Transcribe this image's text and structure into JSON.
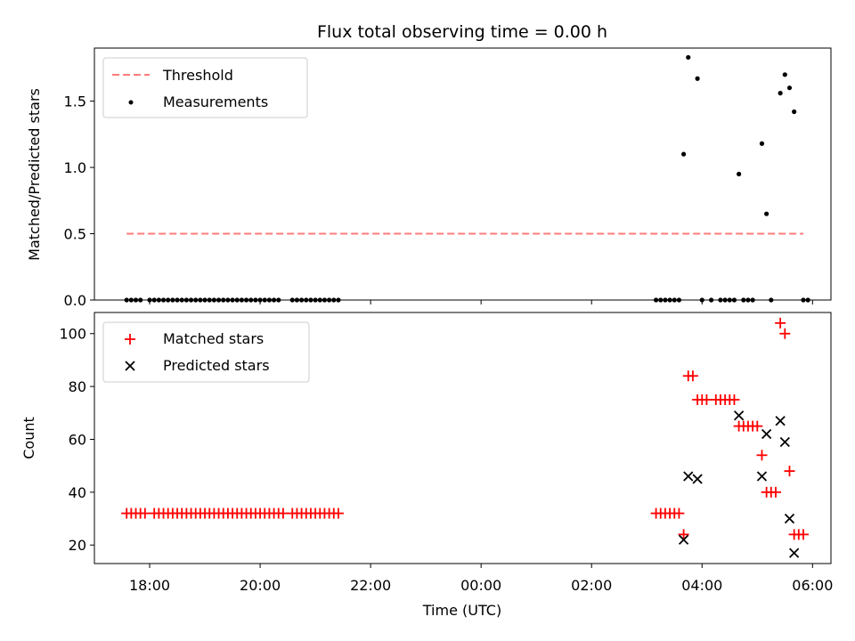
{
  "chart_data": [
    {
      "type": "scatter",
      "title": "Flux total observing time = 0.00 h",
      "xlabel": "",
      "ylabel": "Matched/Predicted stars",
      "ylim": [
        0,
        1.9
      ],
      "xlim": [
        "17:00",
        "06:20"
      ],
      "grid": false,
      "legend_position": "top-left",
      "yticks": [
        "0.0",
        "0.5",
        "1.0",
        "1.5"
      ],
      "xticks": [
        "18:00",
        "20:00",
        "22:00",
        "00:00",
        "02:00",
        "04:00",
        "06:00"
      ],
      "threshold": {
        "name": "Threshold",
        "value": 0.5,
        "color": "#ff7b7b",
        "x_range": [
          "17:35",
          "05:50"
        ]
      },
      "series": [
        {
          "name": "Measurements",
          "color": "#000000",
          "points": [
            [
              "17:35",
              0
            ],
            [
              "17:40",
              0
            ],
            [
              "17:45",
              0
            ],
            [
              "17:50",
              0
            ],
            [
              "18:00",
              0
            ],
            [
              "18:05",
              0
            ],
            [
              "18:10",
              0
            ],
            [
              "18:15",
              0
            ],
            [
              "18:20",
              0
            ],
            [
              "18:25",
              0
            ],
            [
              "18:30",
              0
            ],
            [
              "18:35",
              0
            ],
            [
              "18:40",
              0
            ],
            [
              "18:45",
              0
            ],
            [
              "18:50",
              0
            ],
            [
              "18:55",
              0
            ],
            [
              "19:00",
              0
            ],
            [
              "19:05",
              0
            ],
            [
              "19:10",
              0
            ],
            [
              "19:15",
              0
            ],
            [
              "19:20",
              0
            ],
            [
              "19:25",
              0
            ],
            [
              "19:30",
              0
            ],
            [
              "19:35",
              0
            ],
            [
              "19:40",
              0
            ],
            [
              "19:45",
              0
            ],
            [
              "19:50",
              0
            ],
            [
              "19:55",
              0
            ],
            [
              "20:00",
              0
            ],
            [
              "20:05",
              0
            ],
            [
              "20:10",
              0
            ],
            [
              "20:15",
              0
            ],
            [
              "20:20",
              0
            ],
            [
              "20:35",
              0
            ],
            [
              "20:40",
              0
            ],
            [
              "20:45",
              0
            ],
            [
              "20:50",
              0
            ],
            [
              "20:55",
              0
            ],
            [
              "21:00",
              0
            ],
            [
              "21:05",
              0
            ],
            [
              "21:10",
              0
            ],
            [
              "21:15",
              0
            ],
            [
              "21:20",
              0
            ],
            [
              "21:25",
              0
            ],
            [
              "03:10",
              0
            ],
            [
              "03:15",
              0
            ],
            [
              "03:20",
              0
            ],
            [
              "03:25",
              0
            ],
            [
              "03:30",
              0
            ],
            [
              "03:35",
              0
            ],
            [
              "03:40",
              1.1
            ],
            [
              "03:45",
              1.83
            ],
            [
              "03:55",
              1.67
            ],
            [
              "04:00",
              0
            ],
            [
              "04:10",
              0
            ],
            [
              "04:20",
              0
            ],
            [
              "04:25",
              0
            ],
            [
              "04:30",
              0
            ],
            [
              "04:35",
              0
            ],
            [
              "04:40",
              0.95
            ],
            [
              "04:45",
              0
            ],
            [
              "04:50",
              0
            ],
            [
              "04:55",
              0
            ],
            [
              "05:05",
              1.18
            ],
            [
              "05:10",
              0.65
            ],
            [
              "05:15",
              0
            ],
            [
              "05:25",
              1.56
            ],
            [
              "05:30",
              1.7
            ],
            [
              "05:35",
              1.6
            ],
            [
              "05:40",
              1.42
            ],
            [
              "05:50",
              0
            ],
            [
              "05:55",
              0
            ]
          ]
        }
      ]
    },
    {
      "type": "scatter",
      "title": "",
      "xlabel": "Time (UTC)",
      "ylabel": "Count",
      "ylim": [
        13,
        108
      ],
      "xlim": [
        "17:00",
        "06:20"
      ],
      "grid": false,
      "legend_position": "top-left",
      "yticks": [
        "20",
        "40",
        "60",
        "80",
        "100"
      ],
      "xticks": [
        "18:00",
        "20:00",
        "22:00",
        "00:00",
        "02:00",
        "04:00",
        "06:00"
      ],
      "series": [
        {
          "name": "Matched stars",
          "color": "#ff0000",
          "marker": "plus",
          "points": [
            [
              "17:35",
              32
            ],
            [
              "17:40",
              32
            ],
            [
              "17:45",
              32
            ],
            [
              "17:50",
              32
            ],
            [
              "17:55",
              32
            ],
            [
              "18:05",
              32
            ],
            [
              "18:10",
              32
            ],
            [
              "18:15",
              32
            ],
            [
              "18:20",
              32
            ],
            [
              "18:25",
              32
            ],
            [
              "18:30",
              32
            ],
            [
              "18:35",
              32
            ],
            [
              "18:40",
              32
            ],
            [
              "18:45",
              32
            ],
            [
              "18:50",
              32
            ],
            [
              "18:55",
              32
            ],
            [
              "19:00",
              32
            ],
            [
              "19:05",
              32
            ],
            [
              "19:10",
              32
            ],
            [
              "19:15",
              32
            ],
            [
              "19:20",
              32
            ],
            [
              "19:25",
              32
            ],
            [
              "19:30",
              32
            ],
            [
              "19:35",
              32
            ],
            [
              "19:40",
              32
            ],
            [
              "19:45",
              32
            ],
            [
              "19:50",
              32
            ],
            [
              "19:55",
              32
            ],
            [
              "20:00",
              32
            ],
            [
              "20:05",
              32
            ],
            [
              "20:10",
              32
            ],
            [
              "20:15",
              32
            ],
            [
              "20:20",
              32
            ],
            [
              "20:25",
              32
            ],
            [
              "20:35",
              32
            ],
            [
              "20:40",
              32
            ],
            [
              "20:45",
              32
            ],
            [
              "20:50",
              32
            ],
            [
              "20:55",
              32
            ],
            [
              "21:00",
              32
            ],
            [
              "21:05",
              32
            ],
            [
              "21:10",
              32
            ],
            [
              "21:15",
              32
            ],
            [
              "21:20",
              32
            ],
            [
              "21:25",
              32
            ],
            [
              "03:10",
              32
            ],
            [
              "03:15",
              32
            ],
            [
              "03:20",
              32
            ],
            [
              "03:25",
              32
            ],
            [
              "03:30",
              32
            ],
            [
              "03:35",
              32
            ],
            [
              "03:40",
              24
            ],
            [
              "03:45",
              84
            ],
            [
              "03:50",
              84
            ],
            [
              "03:55",
              75
            ],
            [
              "04:00",
              75
            ],
            [
              "04:05",
              75
            ],
            [
              "04:15",
              75
            ],
            [
              "04:20",
              75
            ],
            [
              "04:25",
              75
            ],
            [
              "04:30",
              75
            ],
            [
              "04:35",
              75
            ],
            [
              "04:40",
              65
            ],
            [
              "04:45",
              65
            ],
            [
              "04:50",
              65
            ],
            [
              "04:55",
              65
            ],
            [
              "05:00",
              65
            ],
            [
              "05:05",
              54
            ],
            [
              "05:10",
              40
            ],
            [
              "05:15",
              40
            ],
            [
              "05:20",
              40
            ],
            [
              "05:25",
              104
            ],
            [
              "05:30",
              100
            ],
            [
              "05:35",
              48
            ],
            [
              "05:40",
              24
            ],
            [
              "05:45",
              24
            ],
            [
              "05:50",
              24
            ]
          ]
        },
        {
          "name": "Predicted stars",
          "color": "#000000",
          "marker": "x",
          "points": [
            [
              "03:40",
              22
            ],
            [
              "03:45",
              46
            ],
            [
              "03:55",
              45
            ],
            [
              "04:40",
              69
            ],
            [
              "05:05",
              46
            ],
            [
              "05:10",
              62
            ],
            [
              "05:25",
              67
            ],
            [
              "05:30",
              59
            ],
            [
              "05:35",
              30
            ],
            [
              "05:40",
              17
            ]
          ]
        }
      ]
    }
  ]
}
